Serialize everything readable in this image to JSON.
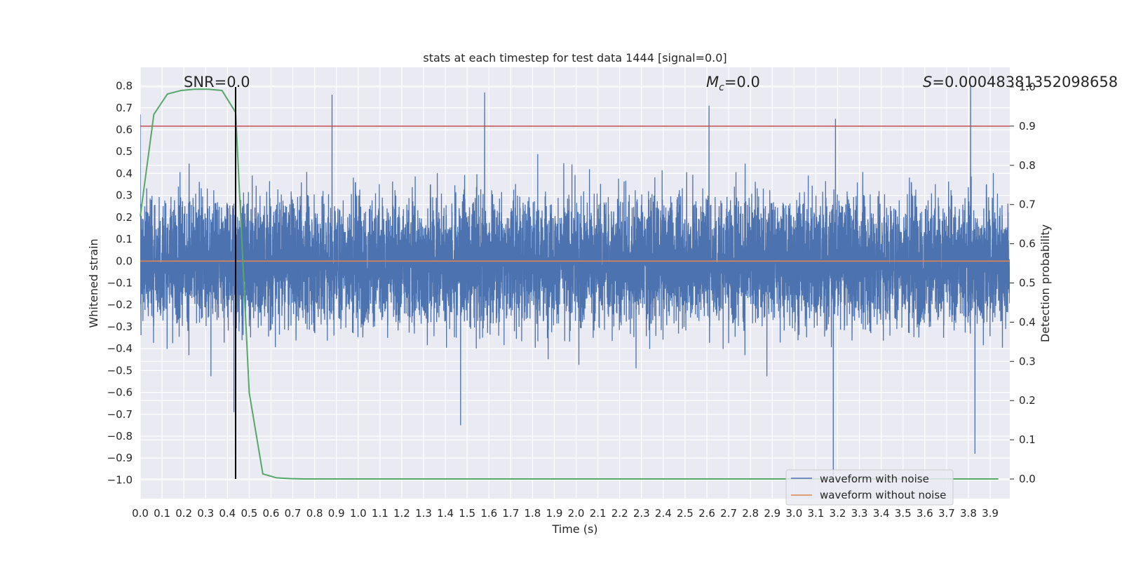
{
  "chart_data": {
    "type": "line",
    "title": "stats at each timestep for test data 1444 [signal=0.0]",
    "xlabel": "Time (s)",
    "ylabel": "Whitened strain",
    "y2label": "Detection probability",
    "xlim": [
      0.0,
      3.99
    ],
    "ylim": [
      -1.085,
      0.885
    ],
    "y2lim": [
      -0.05,
      1.05
    ],
    "x_ticks": [
      0.0,
      0.1,
      0.2,
      0.3,
      0.4,
      0.5,
      0.6,
      0.7,
      0.8,
      0.9,
      1.0,
      1.1,
      1.2,
      1.3,
      1.4,
      1.5,
      1.6,
      1.7,
      1.8,
      1.9,
      2.0,
      2.1,
      2.2,
      2.3,
      2.4,
      2.5,
      2.6,
      2.7,
      2.8,
      2.9,
      3.0,
      3.1,
      3.2,
      3.3,
      3.4,
      3.5,
      3.6,
      3.7,
      3.8,
      3.9
    ],
    "y_ticks": [
      0.8,
      0.7,
      0.6,
      0.5,
      0.4,
      0.3,
      0.2,
      0.1,
      0.0,
      -0.1,
      -0.2,
      -0.3,
      -0.4,
      -0.5,
      -0.6,
      -0.7,
      -0.8,
      -0.9,
      -1.0
    ],
    "y2_ticks": [
      1.0,
      0.9,
      0.8,
      0.7,
      0.6,
      0.5,
      0.4,
      0.3,
      0.2,
      0.1,
      0.0
    ],
    "annotations": {
      "snr": "SNR=0.0",
      "mc_symbol": "M",
      "mc_subscript": "c",
      "mc_value": "=0.0",
      "s_symbol": "S",
      "s_value": "=0.00048381352098658"
    },
    "series": [
      {
        "name": "waveform with noise",
        "color": "#4c72b0",
        "axis": "left",
        "generator": "noise",
        "n_samples": 8184,
        "typical_envelope": 0.27,
        "notable_peaks": [
          {
            "x": 0.0,
            "y": 0.67
          },
          {
            "x": 0.43,
            "y": -0.69
          },
          {
            "x": 0.88,
            "y": 0.76
          },
          {
            "x": 1.47,
            "y": -0.75
          },
          {
            "x": 1.58,
            "y": 0.77
          },
          {
            "x": 2.61,
            "y": 0.71
          },
          {
            "x": 3.18,
            "y": -0.98
          },
          {
            "x": 3.19,
            "y": 0.65
          },
          {
            "x": 3.81,
            "y": 0.8
          },
          {
            "x": 3.83,
            "y": -0.88
          }
        ]
      },
      {
        "name": "waveform without noise",
        "color": "#dd8452",
        "axis": "left",
        "x": [
          0.0,
          3.99
        ],
        "y": [
          0.0,
          0.0
        ]
      },
      {
        "name": "detection probability",
        "color": "#55a868",
        "axis": "right",
        "x": [
          0.0,
          0.0625,
          0.125,
          0.1875,
          0.25,
          0.3125,
          0.375,
          0.4375,
          0.5,
          0.5625,
          0.625,
          0.6875,
          0.75,
          0.8125,
          0.875,
          3.9375
        ],
        "y": [
          0.67,
          0.93,
          0.982,
          0.991,
          0.994,
          0.994,
          0.991,
          0.935,
          0.22,
          0.013,
          0.003,
          0.001,
          0.0,
          0.0,
          0.0,
          0.0
        ]
      }
    ],
    "threshold": {
      "axis": "right",
      "value": 0.9,
      "color": "#c44e52"
    },
    "marker_vline": {
      "x": 0.4375,
      "color": "#000000"
    },
    "legend": {
      "position": "bottom-right",
      "entries": [
        {
          "label": "waveform with noise",
          "color": "#4c72b0"
        },
        {
          "label": "waveform without noise",
          "color": "#dd8452"
        }
      ]
    },
    "style": {
      "background": "#eaeaf2",
      "grid": true,
      "grid_color": "#ffffff"
    }
  }
}
